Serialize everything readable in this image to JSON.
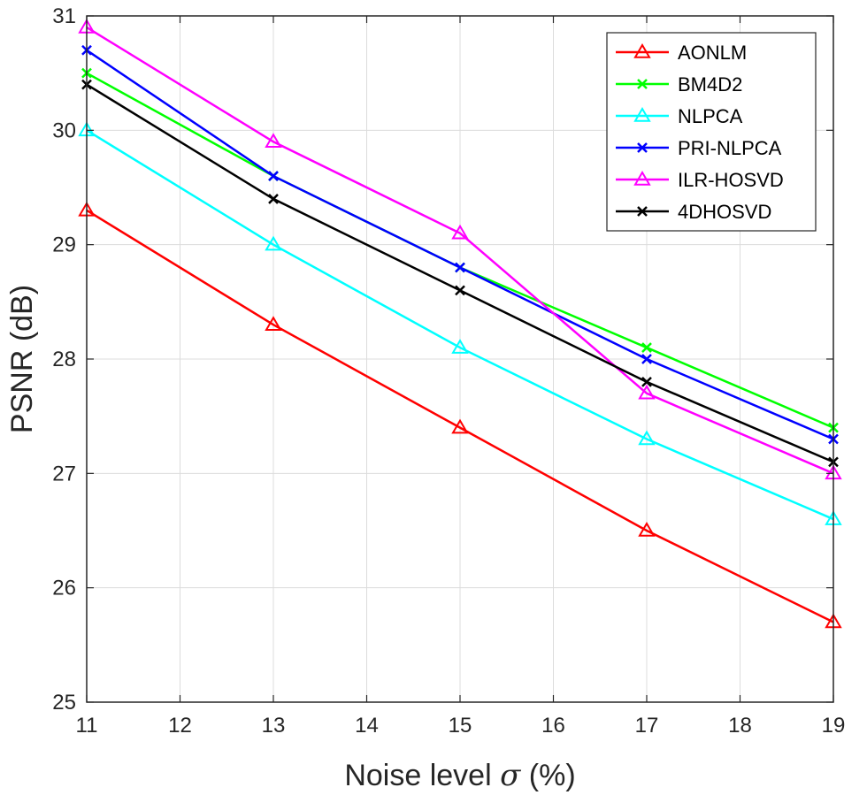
{
  "chart_data": {
    "type": "line",
    "title": "",
    "xlabel_prefix": "Noise level ",
    "xlabel_symbol": "σ",
    "xlabel_suffix": " (%)",
    "ylabel": "PSNR (dB)",
    "xlim": [
      11,
      19
    ],
    "ylim": [
      25,
      31
    ],
    "xticks": [
      11,
      12,
      13,
      14,
      15,
      16,
      17,
      18,
      19
    ],
    "yticks": [
      25,
      26,
      27,
      28,
      29,
      30,
      31
    ],
    "grid": true,
    "legend_position": "top-right",
    "x": [
      11,
      13,
      15,
      17,
      19
    ],
    "series": [
      {
        "name": "AONLM",
        "color": "#ff0000",
        "marker": "triangle",
        "values": [
          29.3,
          28.3,
          27.4,
          26.5,
          25.7
        ]
      },
      {
        "name": "BM4D2",
        "color": "#00ff00",
        "marker": "x",
        "values": [
          30.5,
          29.6,
          28.8,
          28.1,
          27.4
        ]
      },
      {
        "name": "NLPCA",
        "color": "#00ffff",
        "marker": "triangle",
        "values": [
          30.0,
          29.0,
          28.1,
          27.3,
          26.6
        ]
      },
      {
        "name": "PRI-NLPCA",
        "color": "#0000ff",
        "marker": "x",
        "values": [
          30.7,
          29.6,
          28.8,
          28.0,
          27.3
        ]
      },
      {
        "name": "ILR-HOSVD",
        "color": "#ff00ff",
        "marker": "triangle",
        "values": [
          30.9,
          29.9,
          29.1,
          27.7,
          27.0
        ]
      },
      {
        "name": "4DHOSVD",
        "color": "#000000",
        "marker": "x",
        "values": [
          30.4,
          29.4,
          28.6,
          27.8,
          27.1
        ]
      }
    ]
  }
}
